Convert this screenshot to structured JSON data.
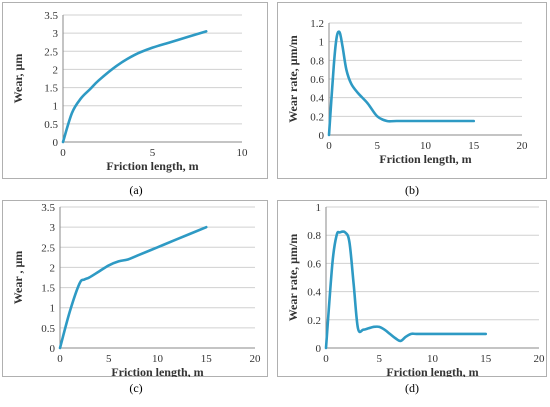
{
  "chart_data": [
    {
      "panel": "a",
      "caption": "(a)",
      "type": "line",
      "xlabel": "Friction length, m",
      "ylabel": "Wear, μm",
      "xlim": [
        0,
        10
      ],
      "ylim": [
        0,
        3.5
      ],
      "xticks": [
        0,
        5,
        10
      ],
      "yticks": [
        0,
        0.5,
        1,
        1.5,
        2,
        2.5,
        3,
        3.5
      ],
      "grid": "horizontal",
      "color": "#2e9ac4",
      "series": [
        {
          "x": [
            0,
            0.5,
            1,
            1.5,
            2,
            3,
            4,
            5,
            6,
            7,
            8
          ],
          "y": [
            0,
            0.8,
            1.2,
            1.45,
            1.7,
            2.1,
            2.4,
            2.6,
            2.75,
            2.9,
            3.05
          ]
        }
      ]
    },
    {
      "panel": "b",
      "caption": "(b)",
      "type": "line",
      "xlabel": "Friction length, m",
      "ylabel": "Wear rate, μm/m",
      "xlim": [
        0,
        20
      ],
      "ylim": [
        0,
        1.2
      ],
      "xticks": [
        0,
        5,
        10,
        15,
        20
      ],
      "yticks": [
        0,
        0.2,
        0.4,
        0.6,
        0.8,
        1,
        1.2
      ],
      "grid": "horizontal",
      "color": "#2e9ac4",
      "series": [
        {
          "x": [
            0,
            0.5,
            0.8,
            1.1,
            1.4,
            1.8,
            2.3,
            3,
            4,
            5,
            6,
            7,
            10,
            15
          ],
          "y": [
            0,
            0.75,
            1.05,
            1.1,
            0.95,
            0.7,
            0.55,
            0.45,
            0.34,
            0.2,
            0.15,
            0.15,
            0.15,
            0.15
          ]
        }
      ]
    },
    {
      "panel": "c",
      "caption": "(c)",
      "type": "line",
      "xlabel": "Friction length, m",
      "ylabel": "Wear , μm",
      "xlim": [
        0,
        20
      ],
      "ylim": [
        0,
        3.5
      ],
      "xticks": [
        0,
        5,
        10,
        15,
        20
      ],
      "yticks": [
        0,
        0.5,
        1,
        1.5,
        2,
        2.5,
        3,
        3.5
      ],
      "grid": "horizontal",
      "color": "#2e9ac4",
      "series": [
        {
          "x": [
            0,
            1,
            2,
            2.5,
            3,
            4,
            5,
            6,
            7,
            8,
            10,
            12,
            15
          ],
          "y": [
            0,
            0.9,
            1.6,
            1.7,
            1.75,
            1.9,
            2.05,
            2.15,
            2.2,
            2.3,
            2.5,
            2.7,
            3.0
          ]
        }
      ]
    },
    {
      "panel": "d",
      "caption": "(d)",
      "type": "line",
      "xlabel": "Friction length, m",
      "ylabel": "Wear rate, μm/m",
      "xlim": [
        0,
        20
      ],
      "ylim": [
        0,
        1
      ],
      "xticks": [
        0,
        5,
        10,
        15,
        20
      ],
      "yticks": [
        0,
        0.2,
        0.4,
        0.6,
        0.8,
        1
      ],
      "grid": "horizontal",
      "color": "#2e9ac4",
      "series": [
        {
          "x": [
            0,
            0.6,
            1,
            1.3,
            1.8,
            2.2,
            2.6,
            3,
            3.5,
            4,
            4.5,
            5,
            5.5,
            6,
            6.5,
            7,
            7.5,
            8,
            8.5,
            10,
            15
          ],
          "y": [
            0,
            0.6,
            0.8,
            0.82,
            0.82,
            0.75,
            0.45,
            0.14,
            0.13,
            0.14,
            0.15,
            0.15,
            0.13,
            0.1,
            0.07,
            0.05,
            0.08,
            0.1,
            0.1,
            0.1,
            0.1
          ]
        }
      ]
    }
  ]
}
